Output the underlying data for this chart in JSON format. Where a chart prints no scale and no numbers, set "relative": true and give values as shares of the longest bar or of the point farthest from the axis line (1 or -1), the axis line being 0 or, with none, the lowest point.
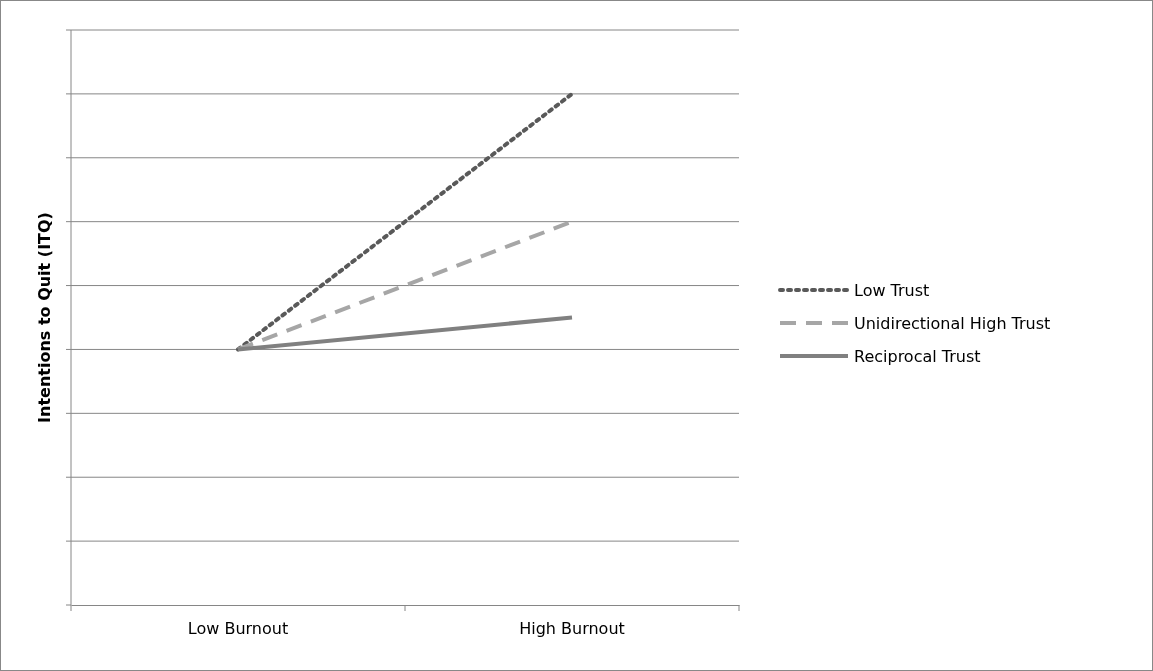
{
  "chart_data": {
    "type": "line",
    "relative": true,
    "ylabel": "Intentions to Quit (ITQ)",
    "categories": [
      "Low Burnout",
      "High Burnout"
    ],
    "grid": "y",
    "legend": "right",
    "marker": "none",
    "series": [
      {
        "name": "Low Trust",
        "color": "#595959",
        "line_style": "dotted",
        "values": [
          0.5,
          1
        ]
      },
      {
        "name": "Unidirectional High Trust",
        "color": "#a6a6a6",
        "line_style": "dashed",
        "values": [
          0.5,
          0.75
        ]
      },
      {
        "name": "Reciprocal Trust",
        "color": "#808080",
        "line_style": "solid",
        "values": [
          0.5,
          0.5625
        ]
      }
    ]
  }
}
